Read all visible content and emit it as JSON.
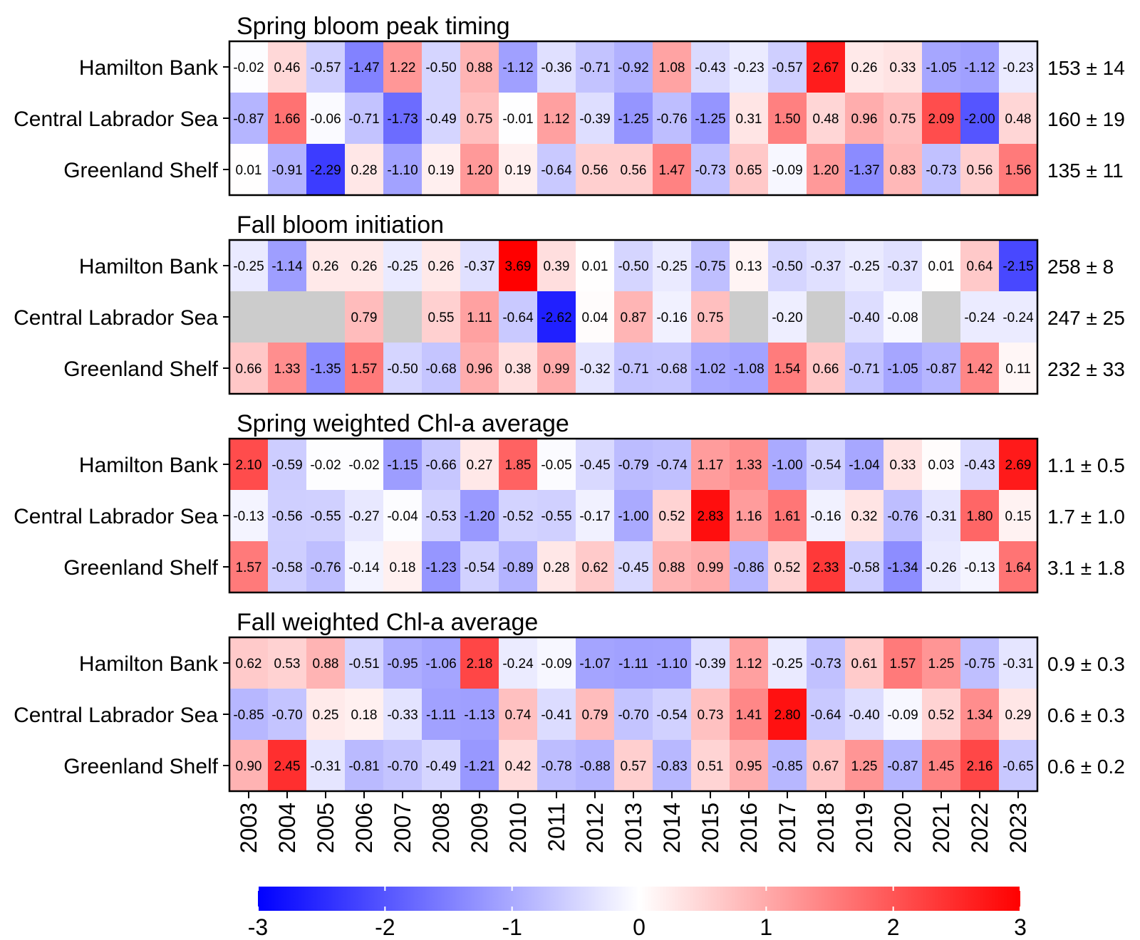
{
  "chart_data": {
    "type": "heatmap",
    "years": [
      "2003",
      "2004",
      "2005",
      "2006",
      "2007",
      "2008",
      "2009",
      "2010",
      "2011",
      "2012",
      "2013",
      "2014",
      "2015",
      "2016",
      "2017",
      "2018",
      "2019",
      "2020",
      "2021",
      "2022",
      "2023"
    ],
    "rows": [
      "Hamilton Bank",
      "Central Labrador Sea",
      "Greenland Shelf"
    ],
    "colorbar": {
      "min": -3,
      "max": 3,
      "ticks": [
        "-3",
        "-2",
        "-1",
        "0",
        "1",
        "2",
        "3"
      ],
      "low_color": "#0000ff",
      "mid_color": "#ffffff",
      "high_color": "#ff0000",
      "missing_color": "#cccccc"
    },
    "panels": [
      {
        "title": "Spring bloom peak timing",
        "values": [
          [
            -0.02,
            0.46,
            -0.57,
            -1.47,
            1.22,
            -0.5,
            0.88,
            -1.12,
            -0.36,
            -0.71,
            -0.92,
            1.08,
            -0.43,
            -0.23,
            -0.57,
            2.67,
            0.26,
            0.33,
            -1.05,
            -1.12,
            -0.23
          ],
          [
            -0.87,
            1.66,
            -0.06,
            -0.71,
            -1.73,
            -0.49,
            0.75,
            -0.01,
            1.12,
            -0.39,
            -1.25,
            -0.76,
            -1.25,
            0.31,
            1.5,
            0.48,
            0.96,
            0.75,
            2.09,
            -2.0,
            0.48
          ],
          [
            0.01,
            -0.91,
            -2.29,
            0.28,
            -1.1,
            0.19,
            1.2,
            0.19,
            -0.64,
            0.56,
            0.56,
            1.47,
            -0.73,
            0.65,
            -0.09,
            1.2,
            -1.37,
            0.83,
            -0.73,
            0.56,
            1.56
          ]
        ],
        "stats": [
          "153 ± 14",
          "160 ± 19",
          "135 ± 11"
        ]
      },
      {
        "title": "Fall bloom initiation",
        "values": [
          [
            -0.25,
            -1.14,
            0.26,
            0.26,
            -0.25,
            0.26,
            -0.37,
            3.69,
            0.39,
            0.01,
            -0.5,
            -0.25,
            -0.75,
            0.13,
            -0.5,
            -0.37,
            -0.25,
            -0.37,
            0.01,
            0.64,
            -2.15
          ],
          [
            null,
            null,
            null,
            0.79,
            null,
            0.55,
            1.11,
            -0.64,
            -2.62,
            0.04,
            0.87,
            -0.16,
            0.75,
            null,
            -0.2,
            null,
            -0.4,
            -0.08,
            null,
            -0.24,
            -0.24
          ],
          [
            0.66,
            1.33,
            -1.35,
            1.57,
            -0.5,
            -0.68,
            0.96,
            0.38,
            0.99,
            -0.32,
            -0.71,
            -0.68,
            -1.02,
            -1.08,
            1.54,
            0.66,
            -0.71,
            -1.05,
            -0.87,
            1.42,
            0.11
          ]
        ],
        "stats": [
          "258 ± 8",
          "247 ± 25",
          "232 ± 33"
        ]
      },
      {
        "title": "Spring weighted Chl-a average",
        "values": [
          [
            2.1,
            -0.59,
            -0.02,
            -0.02,
            -1.15,
            -0.66,
            0.27,
            1.85,
            -0.05,
            -0.45,
            -0.79,
            -0.74,
            1.17,
            1.33,
            -1.0,
            -0.54,
            -1.04,
            0.33,
            0.03,
            -0.43,
            2.69
          ],
          [
            -0.13,
            -0.56,
            -0.55,
            -0.27,
            -0.04,
            -0.53,
            -1.2,
            -0.52,
            -0.55,
            -0.17,
            -1.0,
            0.52,
            2.83,
            1.16,
            1.61,
            -0.16,
            0.32,
            -0.76,
            -0.31,
            1.8,
            0.15
          ],
          [
            1.57,
            -0.58,
            -0.76,
            -0.14,
            0.18,
            -1.23,
            -0.54,
            -0.89,
            0.28,
            0.62,
            -0.45,
            0.88,
            0.99,
            -0.86,
            0.52,
            2.33,
            -0.58,
            -1.34,
            -0.26,
            -0.13,
            1.64
          ]
        ],
        "stats": [
          "1.1 ± 0.5",
          "1.7 ± 1.0",
          "3.1 ± 1.8"
        ]
      },
      {
        "title": "Fall weighted Chl-a average",
        "values": [
          [
            0.62,
            0.53,
            0.88,
            -0.51,
            -0.95,
            -1.06,
            2.18,
            -0.24,
            -0.09,
            -1.07,
            -1.11,
            -1.1,
            -0.39,
            1.12,
            -0.25,
            -0.73,
            0.61,
            1.57,
            1.25,
            -0.75,
            -0.31
          ],
          [
            -0.85,
            -0.7,
            0.25,
            0.18,
            -0.33,
            -1.11,
            -1.13,
            0.74,
            -0.41,
            0.79,
            -0.7,
            -0.54,
            0.73,
            1.41,
            2.8,
            -0.64,
            -0.4,
            -0.09,
            0.52,
            1.34,
            0.29
          ],
          [
            0.9,
            2.45,
            -0.31,
            -0.81,
            -0.7,
            -0.49,
            -1.21,
            0.42,
            -0.78,
            -0.88,
            0.57,
            -0.83,
            0.51,
            0.95,
            -0.85,
            0.67,
            1.25,
            -0.87,
            1.45,
            2.16,
            -0.65
          ]
        ],
        "stats": [
          "0.9 ± 0.3",
          "0.6 ± 0.3",
          "0.6 ± 0.2"
        ]
      }
    ]
  }
}
